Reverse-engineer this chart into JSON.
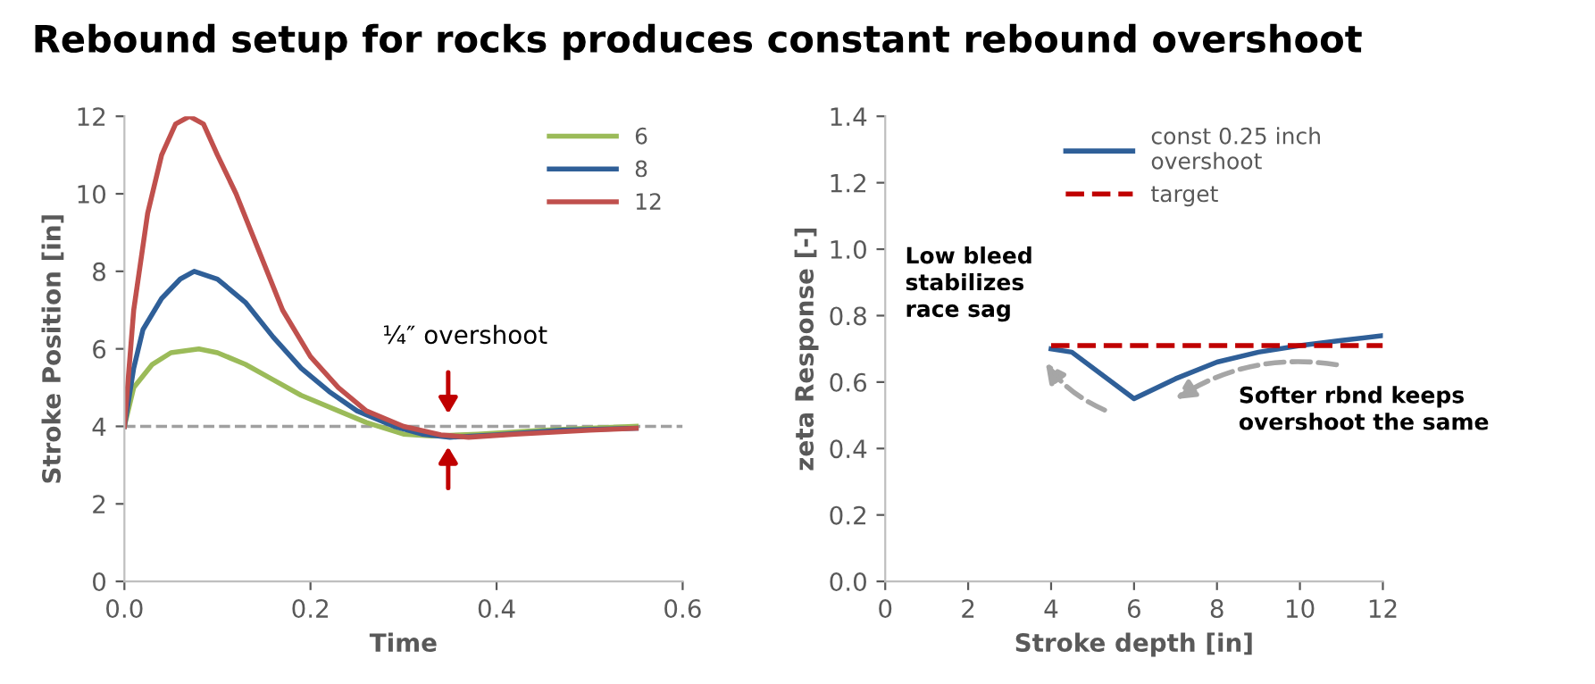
{
  "chart_data": [
    {
      "type": "line",
      "title": "Rebound setup for rocks produces constant rebound overshoot",
      "xlabel": "Time",
      "ylabel": "Stroke Position [in]",
      "xlim": [
        0,
        0.6
      ],
      "xticks": [
        {
          "value": 0,
          "label": "0.0"
        },
        0.2,
        0.4,
        0.6
      ],
      "ylim": [
        0,
        12
      ],
      "yticks": [
        0,
        2,
        4,
        6,
        8,
        10,
        12
      ],
      "grid": false,
      "legend": "top right",
      "series": [
        {
          "name": "6",
          "color": "#9bbb59",
          "x": [
            0,
            0.01,
            0.03,
            0.05,
            0.08,
            0.1,
            0.13,
            0.16,
            0.19,
            0.23,
            0.26,
            0.3,
            0.33,
            0.38,
            0.45,
            0.55
          ],
          "values": [
            4,
            5.0,
            5.6,
            5.9,
            6.0,
            5.9,
            5.6,
            5.2,
            4.8,
            4.4,
            4.1,
            3.8,
            3.75,
            3.8,
            3.9,
            4.0
          ]
        },
        {
          "name": "8",
          "color": "#2f5f98",
          "x": [
            0,
            0.01,
            0.02,
            0.04,
            0.06,
            0.075,
            0.1,
            0.13,
            0.16,
            0.19,
            0.22,
            0.25,
            0.29,
            0.32,
            0.35,
            0.4,
            0.47,
            0.55
          ],
          "values": [
            4,
            5.5,
            6.5,
            7.3,
            7.8,
            8.0,
            7.8,
            7.2,
            6.3,
            5.5,
            4.9,
            4.4,
            4.0,
            3.8,
            3.72,
            3.78,
            3.9,
            3.95
          ]
        },
        {
          "name": "12",
          "color": "#c0504d",
          "x": [
            0,
            0.01,
            0.025,
            0.04,
            0.055,
            0.07,
            0.085,
            0.1,
            0.12,
            0.145,
            0.17,
            0.2,
            0.23,
            0.26,
            0.3,
            0.34,
            0.37,
            0.42,
            0.5,
            0.55
          ],
          "values": [
            4,
            7,
            9.5,
            11,
            11.8,
            12,
            11.8,
            11,
            10,
            8.5,
            7,
            5.8,
            5.0,
            4.4,
            4.0,
            3.78,
            3.72,
            3.8,
            3.9,
            3.95
          ]
        }
      ],
      "ref_lines": [
        {
          "axis": "y",
          "value": 4,
          "color": "#a0a0a0",
          "line_style": "dashed"
        }
      ],
      "annotations": [
        "¼″ overshoot"
      ]
    },
    {
      "type": "line",
      "xlabel": "Stroke depth [in]",
      "ylabel": "zeta Response [-]",
      "xlim": [
        0,
        12
      ],
      "xticks": [
        0,
        2,
        4,
        6,
        8,
        10,
        12
      ],
      "ylim": [
        0,
        1.4
      ],
      "yticks": [
        {
          "value": 0,
          "label": "0.0"
        },
        0.2,
        0.4,
        0.6,
        0.8,
        {
          "value": 1,
          "label": "1.0"
        },
        1.2,
        1.4
      ],
      "grid": false,
      "legend": "top",
      "series": [
        {
          "name": "const 0.25 inch\novershoot",
          "color": "#2f5f98",
          "line_style": "solid",
          "x": [
            4,
            4.5,
            6,
            7,
            8,
            9,
            10,
            11,
            12
          ],
          "values": [
            0.7,
            0.69,
            0.55,
            0.61,
            0.66,
            0.69,
            0.71,
            0.725,
            0.74
          ]
        },
        {
          "name": "target",
          "color": "#c00000",
          "line_style": "dashed",
          "x": [
            4,
            12
          ],
          "values": [
            0.71,
            0.71
          ]
        }
      ],
      "annotations": [
        "Low bleed\nstabilizes\nrace sag",
        "Softer rbnd keeps\novershoot the same"
      ]
    }
  ]
}
